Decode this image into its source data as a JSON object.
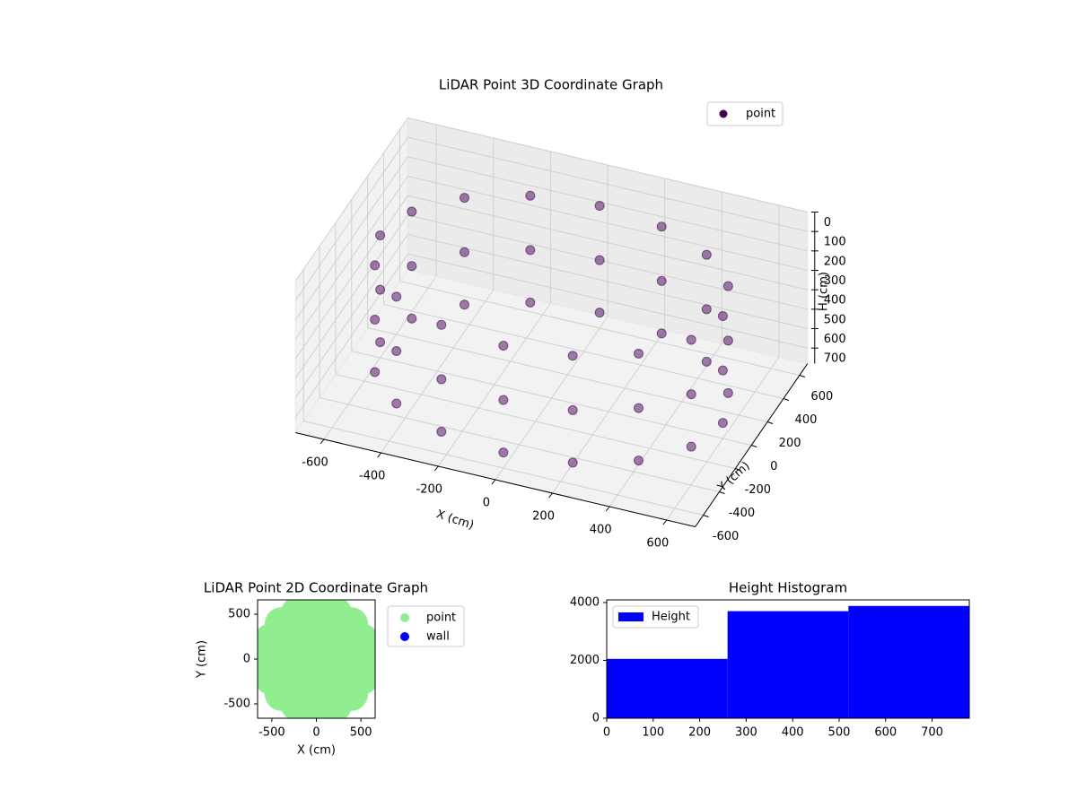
{
  "chart_data": [
    {
      "type": "scatter3d",
      "title": "LiDAR Point 3D Coordinate Graph",
      "xlabel": "X (cm)",
      "ylabel": "Y (cm)",
      "zlabel": "H (cm)",
      "xlim": [
        -700,
        700
      ],
      "ylim": [
        -700,
        700
      ],
      "zlim": [
        0,
        780
      ],
      "z_inverted": true,
      "xticks": [
        -600,
        -400,
        -200,
        0,
        200,
        400,
        600
      ],
      "yticks": [
        -600,
        -400,
        -200,
        0,
        200,
        400,
        600
      ],
      "zticks": [
        0,
        100,
        200,
        300,
        400,
        500,
        600,
        700
      ],
      "grid": true,
      "legend": "upper right",
      "series": [
        {
          "name": "point",
          "color": "#440154",
          "x": [
            600,
            554,
            424,
            230,
            0,
            -230,
            -424,
            -554,
            -600,
            -554,
            -424,
            -230,
            0,
            230,
            424,
            554,
            600,
            554,
            424,
            230,
            0,
            -230,
            -424,
            -554,
            -600,
            -554,
            -424,
            -230,
            0,
            230,
            424,
            554,
            600,
            554,
            424,
            230,
            0,
            -230,
            -424,
            -554,
            -600,
            -554,
            -424,
            -230,
            0,
            230,
            424,
            554
          ],
          "y": [
            0,
            230,
            424,
            554,
            600,
            554,
            424,
            230,
            0,
            -230,
            -424,
            -554,
            -600,
            -554,
            -424,
            -230,
            0,
            230,
            424,
            554,
            600,
            554,
            424,
            230,
            0,
            -230,
            -424,
            -554,
            -600,
            -554,
            -424,
            -230,
            0,
            230,
            424,
            554,
            600,
            554,
            424,
            230,
            0,
            -230,
            -424,
            -554,
            -600,
            -554,
            -424,
            -230
          ],
          "values": [
            150,
            150,
            150,
            150,
            150,
            150,
            150,
            150,
            150,
            150,
            150,
            150,
            150,
            150,
            150,
            150,
            430,
            430,
            430,
            430,
            430,
            430,
            430,
            430,
            430,
            430,
            430,
            430,
            430,
            430,
            430,
            430,
            700,
            700,
            700,
            700,
            700,
            700,
            700,
            700,
            700,
            700,
            700,
            700,
            700,
            700,
            700,
            700
          ]
        }
      ]
    },
    {
      "type": "scatter",
      "title": "LiDAR Point 2D Coordinate Graph",
      "xlabel": "X (cm)",
      "ylabel": "Y (cm)",
      "xlim": [
        -660,
        660
      ],
      "ylim": [
        -660,
        660
      ],
      "xticks": [
        -500,
        0,
        500
      ],
      "yticks": [
        -500,
        0,
        500
      ],
      "legend": "outside right",
      "series": [
        {
          "name": "point",
          "color": "#90ee90",
          "x": [
            550,
            508,
            389,
            210,
            0,
            -210,
            -389,
            -508,
            -550,
            -508,
            -389,
            -210,
            0,
            210,
            389,
            508,
            300,
            212,
            0,
            -212,
            -300,
            -212,
            0,
            212,
            0
          ],
          "values": [
            0,
            210,
            389,
            508,
            550,
            508,
            389,
            210,
            0,
            -210,
            -389,
            -508,
            -550,
            -508,
            -389,
            -210,
            0,
            212,
            300,
            212,
            0,
            -212,
            -300,
            -212,
            0
          ]
        },
        {
          "name": "wall",
          "color": "#0000ff",
          "x": [],
          "values": []
        }
      ]
    },
    {
      "type": "histogram",
      "title": "Height Histogram",
      "bins": [
        0,
        260,
        520,
        780
      ],
      "values": [
        2050,
        3700,
        3880
      ],
      "name": "Height",
      "color": "#0000ff",
      "xlim": [
        0,
        780
      ],
      "ylim": [
        0,
        4090
      ],
      "xticks": [
        0,
        100,
        200,
        300,
        400,
        500,
        600,
        700
      ],
      "yticks": [
        0,
        2000,
        4000
      ],
      "legend": "upper left"
    }
  ]
}
